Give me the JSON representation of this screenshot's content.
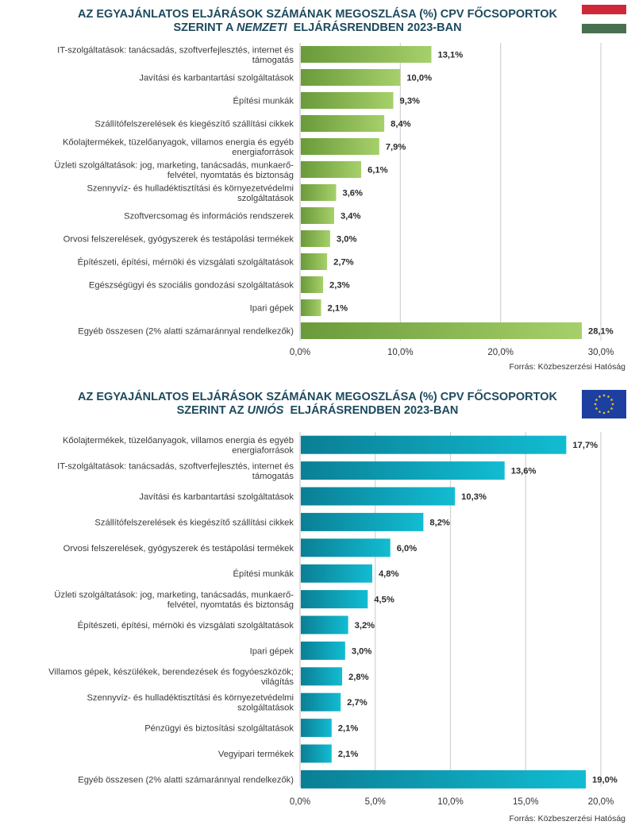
{
  "chart_data": [
    {
      "type": "bar",
      "orientation": "horizontal",
      "title_line1": "AZ EGYAJÁNLATOS ELJÁRÁSOK SZÁMÁNAK MEGOSZLÁSA (%) CPV FŐCSOPORTOK",
      "title_line2_pre": "SZERINT A ",
      "title_line2_em": "NEMZETI",
      "title_line2_post": "  ELJÁRÁSRENDBEN 2023-BAN",
      "categories": [
        "IT-szolgáltatások: tanácsadás, szoftverfejlesztés, internet és támogatás",
        "Javítási és karbantartási szolgáltatások",
        "Építési munkák",
        "Szállítófelszerelések és kiegészítő szállítási cikkek",
        "Kőolajtermékek, tüzelőanyagok, villamos energia és egyéb energiaforrások",
        "Üzleti szolgáltatások: jog, marketing, tanácsadás, munkaerő-felvétel, nyomtatás és biztonság",
        "Szennyvíz- és hulladéktisztítási és környezetvédelmi szolgáltatások",
        "Szoftvercsomag és információs rendszerek",
        "Orvosi felszerelések, gyógyszerek és testápolási termékek",
        "Építészeti, építési, mérnöki és vizsgálati szolgáltatások",
        "Egészségügyi és szociális gondozási szolgáltatások",
        "Ipari gépek",
        "Egyéb összesen (2% alatti számaránnyal rendelkezők)"
      ],
      "category_lines": [
        [
          "IT-szolgáltatások: tanácsadás, szoftverfejlesztés, internet és",
          "támogatás"
        ],
        [
          "Javítási és karbantartási szolgáltatások"
        ],
        [
          "Építési munkák"
        ],
        [
          "Szállítófelszerelések és kiegészítő szállítási cikkek"
        ],
        [
          "Kőolajtermékek, tüzelőanyagok, villamos energia és egyéb",
          "energiaforrások"
        ],
        [
          "Üzleti szolgáltatások: jog, marketing, tanácsadás, munkaerő-",
          "felvétel, nyomtatás és biztonság"
        ],
        [
          "Szennyvíz- és hulladéktisztítási és környezetvédelmi",
          "szolgáltatások"
        ],
        [
          "Szoftvercsomag és információs rendszerek"
        ],
        [
          "Orvosi felszerelések, gyógyszerek és testápolási termékek"
        ],
        [
          "Építészeti, építési, mérnöki és vizsgálati szolgáltatások"
        ],
        [
          "Egészségügyi és szociális gondozási szolgáltatások"
        ],
        [
          "Ipari gépek"
        ],
        [
          "Egyéb összesen (2% alatti számaránnyal rendelkezők)"
        ]
      ],
      "values": [
        13.1,
        10.0,
        9.3,
        8.4,
        7.9,
        6.1,
        3.6,
        3.4,
        3.0,
        2.7,
        2.3,
        2.1,
        28.1
      ],
      "value_labels": [
        "13,1%",
        "10,0%",
        "9,3%",
        "8,4%",
        "7,9%",
        "6,1%",
        "3,6%",
        "3,4%",
        "3,0%",
        "2,7%",
        "2,3%",
        "2,1%",
        "28,1%"
      ],
      "xticks": [
        0,
        10,
        20,
        30
      ],
      "xtick_labels": [
        "0,0%",
        "10,0%",
        "20,0%",
        "30,0%"
      ],
      "xlim": [
        0,
        30
      ],
      "grid": true,
      "colors": {
        "bar_start": "#6a9a3a",
        "bar_end": "#a6d06a"
      },
      "flag": "hungary-flag",
      "source": "Forrás: Közbeszerzési Hatóság"
    },
    {
      "type": "bar",
      "orientation": "horizontal",
      "title_line1": "AZ EGYAJÁNLATOS ELJÁRÁSOK SZÁMÁNAK MEGOSZLÁSA (%) CPV FŐCSOPORTOK",
      "title_line2_pre": "SZERINT AZ ",
      "title_line2_em": "UNIÓS",
      "title_line2_post": "  ELJÁRÁSRENDBEN 2023-BAN",
      "categories": [
        "Kőolajtermékek, tüzelőanyagok, villamos energia és egyéb energiaforrások",
        "IT-szolgáltatások: tanácsadás, szoftverfejlesztés, internet és támogatás",
        "Javítási és karbantartási szolgáltatások",
        "Szállítófelszerelések és kiegészítő szállítási cikkek",
        "Orvosi felszerelések, gyógyszerek és testápolási termékek",
        "Építési munkák",
        "Üzleti szolgáltatások: jog, marketing, tanácsadás, munkaerő-felvétel, nyomtatás és biztonság",
        "Építészeti, építési, mérnöki és vizsgálati szolgáltatások",
        "Ipari gépek",
        "Villamos gépek, készülékek, berendezések és fogyóeszközök; világítás",
        "Szennyvíz- és hulladéktisztítási és környezetvédelmi szolgáltatások",
        "Pénzügyi és biztosítási szolgáltatások",
        "Vegyipari termékek",
        "Egyéb összesen (2% alatti számaránnyal rendelkezők)"
      ],
      "category_lines": [
        [
          "Kőolajtermékek, tüzelőanyagok, villamos energia és egyéb",
          "energiaforrások"
        ],
        [
          "IT-szolgáltatások: tanácsadás, szoftverfejlesztés, internet és",
          "támogatás"
        ],
        [
          "Javítási és karbantartási szolgáltatások"
        ],
        [
          "Szállítófelszerelések és kiegészítő szállítási cikkek"
        ],
        [
          "Orvosi felszerelések, gyógyszerek és testápolási termékek"
        ],
        [
          "Építési munkák"
        ],
        [
          "Üzleti szolgáltatások: jog, marketing, tanácsadás, munkaerő-",
          "felvétel, nyomtatás és biztonság"
        ],
        [
          "Építészeti, építési, mérnöki és vizsgálati szolgáltatások"
        ],
        [
          "Ipari gépek"
        ],
        [
          "Villamos gépek, készülékek, berendezések és fogyóeszközök;",
          "világítás"
        ],
        [
          "Szennyvíz- és hulladéktisztítási és környezetvédelmi",
          "szolgáltatások"
        ],
        [
          "Pénzügyi és biztosítási szolgáltatások"
        ],
        [
          "Vegyipari termékek"
        ],
        [
          "Egyéb összesen (2% alatti számaránnyal rendelkezők)"
        ]
      ],
      "values": [
        17.7,
        13.6,
        10.3,
        8.2,
        6.0,
        4.8,
        4.5,
        3.2,
        3.0,
        2.8,
        2.7,
        2.1,
        2.1,
        19.0
      ],
      "value_labels": [
        "17,7%",
        "13,6%",
        "10,3%",
        "8,2%",
        "6,0%",
        "4,8%",
        "4,5%",
        "3,2%",
        "3,0%",
        "2,8%",
        "2,7%",
        "2,1%",
        "2,1%",
        "19,0%"
      ],
      "xticks": [
        0,
        5,
        10,
        15,
        20
      ],
      "xtick_labels": [
        "0,0%",
        "5,0%",
        "10,0%",
        "15,0%",
        "20,0%"
      ],
      "xlim": [
        0,
        20
      ],
      "grid": true,
      "colors": {
        "bar_start": "#0a7f95",
        "bar_end": "#12bcd2"
      },
      "flag": "eu-flag",
      "source": "Forrás: Közbeszerzési Hatóság"
    }
  ]
}
